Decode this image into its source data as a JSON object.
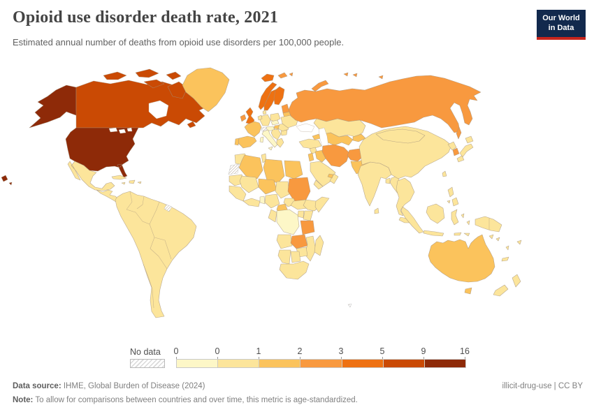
{
  "header": {
    "title": "Opioid use disorder death rate, 2021",
    "subtitle": "Estimated annual number of deaths from opioid use disorders per 100,000 people.",
    "logo": {
      "line1": "Our World",
      "line2": "in Data",
      "bg_color": "#12294d",
      "bar_color": "#c7251d"
    }
  },
  "legend": {
    "no_data_label": "No data",
    "tick_labels": [
      "0",
      "0",
      "1",
      "2",
      "3",
      "5",
      "9",
      "16"
    ]
  },
  "footer": {
    "source_label": "Data source:",
    "source_text": " IHME, Global Burden of Disease (2024)",
    "note_label": "Note:",
    "note_text": " To allow for comparisons between countries and over time, this metric is age-standardized.",
    "right_text": "illicit-drug-use | CC BY"
  },
  "chart_data": {
    "type": "choropleth",
    "title": "Opioid use disorder death rate, 2021",
    "unit": "deaths per 100,000 people",
    "year": "2021",
    "legend_bins": [
      {
        "range": "0-0",
        "color": "#FDF7C7"
      },
      {
        "range": "0-1",
        "color": "#FCE59B"
      },
      {
        "range": "1-2",
        "color": "#FBC35C"
      },
      {
        "range": "2-3",
        "color": "#F8993F"
      },
      {
        "range": "3-5",
        "color": "#EE7112"
      },
      {
        "range": "5-9",
        "color": "#CA4A04"
      },
      {
        "range": "9-16",
        "color": "#8E2A08"
      }
    ],
    "no_data_fill": "hatch",
    "region_bins": {
      "usa": 7,
      "hawaii": 7,
      "canada": 6,
      "canadian-arctic": 6,
      "newfoundland": 6,
      "greenland": 3,
      "mexico": 2,
      "central-america": 2,
      "cuba": 2,
      "hispaniola": 2,
      "jamaica": 2,
      "puerto-rico": 2,
      "south-america": 2,
      "french-guiana": null,
      "iceland": 5,
      "svalbard": 4,
      "norway": 5,
      "sweden": 5,
      "finland": 5,
      "denmark": 2,
      "uk": 5,
      "ireland": 4,
      "baltics": 4,
      "belarus": 3,
      "poland": 2,
      "germany": 2,
      "benelux": 2,
      "france": 3,
      "spain": 3,
      "portugal": 3,
      "switzerland": null,
      "austria": 1,
      "czech": 1,
      "hungary": 3,
      "italy": 1,
      "balkans": 2,
      "romania": 2,
      "bulgaria": 2,
      "greece": 2,
      "ukraine": 2,
      "russia": 4,
      "novaya-zemlya": 4,
      "franz-josef": 4,
      "sakhalin": 4,
      "kazakhstan": 2,
      "central-asia": 3,
      "kyrgyz-tajik": 3,
      "caucasus": 3,
      "turkey": 2,
      "syria": 2,
      "iraq": 3,
      "israel-jordan": 3,
      "iran": 4,
      "afghanistan": 4,
      "pakistan": 3,
      "saudi-arabia": 2,
      "yemen": 2,
      "oman": 2,
      "uae": 3,
      "morocco": 2,
      "western-sahara": null,
      "algeria": 3,
      "tunisia": 2,
      "libya": 3,
      "egypt": 3,
      "mauritania": 2,
      "mali": 2,
      "niger": 3,
      "chad": 2,
      "sudan": 4,
      "senegal-guinea": 2,
      "ivory-ghana": 2,
      "benin-togo": 1,
      "nigeria": 2,
      "cameroon": 3,
      "car": 2,
      "south-sudan": 2,
      "ethiopia": 2,
      "somalia": 2,
      "kenya": 2,
      "uganda": 2,
      "drc": 1,
      "congo-gabon": 2,
      "tanzania": 4,
      "angola": 2,
      "zambia": 4,
      "mozambique": 2,
      "zimbabwe": 2,
      "namibia": 2,
      "botswana": 2,
      "south-africa": 2,
      "madagascar": 2,
      "india": 2,
      "sri-lanka": 2,
      "bangladesh": 2,
      "myanmar": 2,
      "indochina": 2,
      "malaysia": 2,
      "china": 2,
      "mongolia": 2,
      "north-korea": 2,
      "south-korea": 4,
      "japan": 2,
      "taiwan": 2,
      "philippines": 2,
      "indonesia": 2,
      "new-guinea": 2,
      "australia": 3,
      "tasmania": 3,
      "new-zealand": 2,
      "fiji": 2,
      "new-caledonia": 2,
      "vanuatu": 2,
      "solomon-islands": 2,
      "kerguelen": null
    }
  }
}
